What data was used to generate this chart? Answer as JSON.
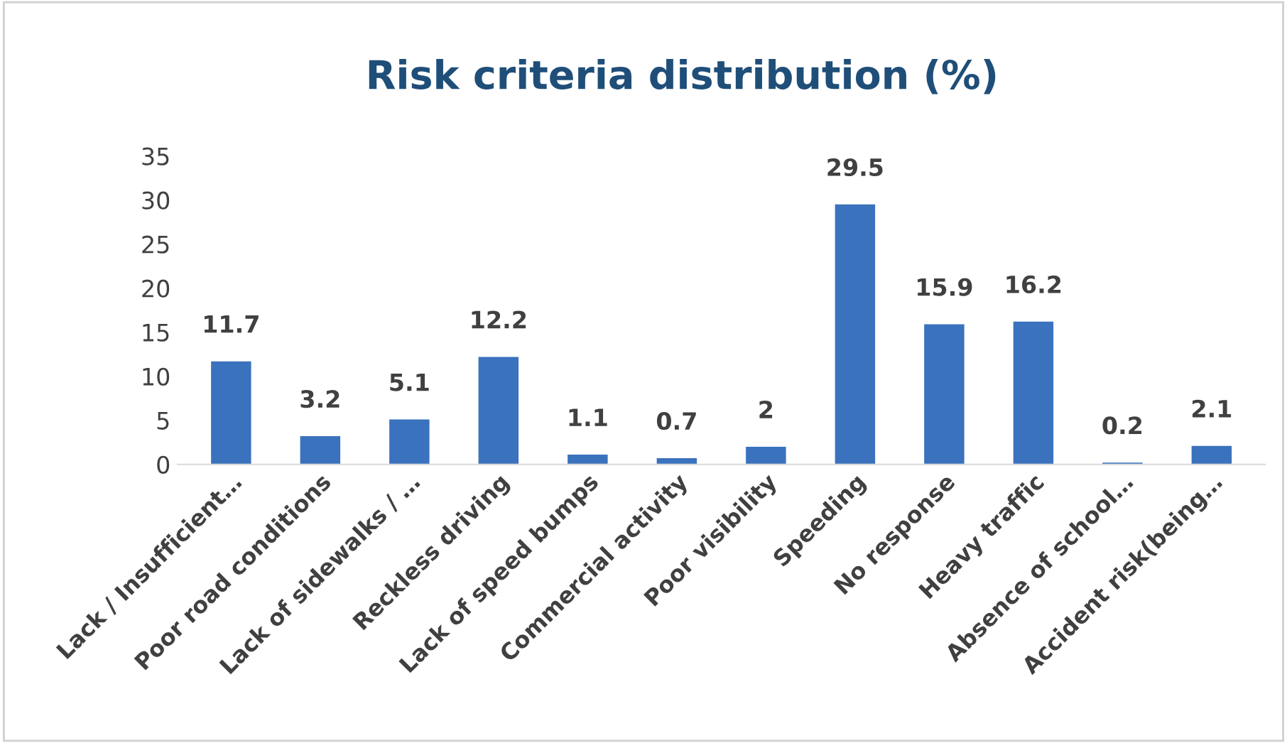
{
  "chart_data": {
    "type": "bar",
    "title": "Risk criteria distribution (%)",
    "categories": [
      "Lack / Insufficient…",
      "Poor road conditions",
      "Lack of sidewalks / …",
      "Reckless driving",
      "Lack of speed bumps",
      "Commercial activity",
      "Poor visibility",
      "Speeding",
      "No response",
      "Heavy traffic",
      "Absence of school…",
      "Accident risk(being…"
    ],
    "values": [
      11.7,
      3.2,
      5.1,
      12.2,
      1.1,
      0.7,
      2,
      29.5,
      15.9,
      16.2,
      0.2,
      2.1
    ],
    "color": "#3b72bd",
    "ylim": [
      0,
      35
    ],
    "yticks": [
      0,
      5,
      10,
      15,
      20,
      25,
      30,
      35
    ],
    "data_labels": true,
    "grid": false,
    "legend": false
  }
}
